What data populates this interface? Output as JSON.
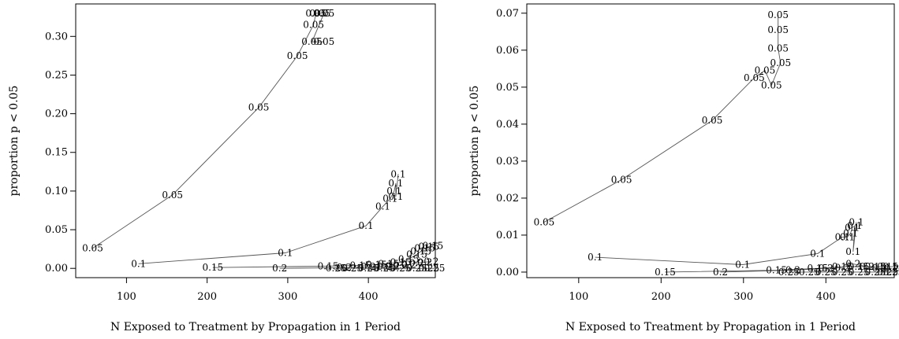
{
  "chart_data": [
    {
      "type": "line",
      "xlabel": "N Exposed to Treatment by Propagation in 1 Period",
      "ylabel": "proportion p < 0.05",
      "xlim": [
        37,
        483
      ],
      "ylim": [
        -0.012,
        0.342
      ],
      "x_ticks": [
        100,
        200,
        300,
        400
      ],
      "x_tick_labels": [
        "100",
        "200",
        "300",
        "400"
      ],
      "y_ticks": [
        0.0,
        0.05,
        0.1,
        0.15,
        0.2,
        0.25,
        0.3
      ],
      "y_tick_labels": [
        "0.00",
        "0.05",
        "0.10",
        "0.15",
        "0.20",
        "0.25",
        "0.30"
      ],
      "grid": false,
      "legend": "none",
      "series": [
        {
          "label": "0.05",
          "x": [
            58,
            157,
            264,
            312,
            332,
            335,
            340,
            345,
            330,
            345
          ],
          "y": [
            0.026,
            0.095,
            0.208,
            0.275,
            0.315,
            0.33,
            0.33,
            0.33,
            0.293,
            0.293
          ]
        },
        {
          "label": "0.1",
          "x": [
            115,
            297,
            397,
            418,
            427,
            432,
            434,
            434,
            437
          ],
          "y": [
            0.006,
            0.02,
            0.055,
            0.08,
            0.09,
            0.1,
            0.11,
            0.093,
            0.122
          ]
        },
        {
          "label": "0.15",
          "x": [
            207,
            350,
            390,
            410,
            425,
            440,
            450,
            460,
            465,
            470,
            475,
            480
          ],
          "y": [
            0.001,
            0.003,
            0.004,
            0.005,
            0.006,
            0.008,
            0.012,
            0.018,
            0.022,
            0.026,
            0.028,
            0.029
          ]
        },
        {
          "label": "0.2",
          "x": [
            290,
            370,
            400,
            420,
            430,
            440,
            450,
            460,
            470,
            478
          ],
          "y": [
            0.0,
            0.001,
            0.002,
            0.002,
            0.003,
            0.004,
            0.005,
            0.007,
            0.008,
            0.009
          ]
        },
        {
          "label": "0.25",
          "x": [
            360,
            380,
            400,
            420,
            440,
            460,
            475,
            482
          ],
          "y": [
            0.0,
            0.0,
            0.0,
            0.0,
            0.0,
            0.0,
            0.0,
            0.0
          ]
        }
      ]
    },
    {
      "type": "line",
      "xlabel": "N Exposed to Treatment by Propagation in 1 Period",
      "ylabel": "proportion p < 0.05",
      "xlim": [
        37,
        483
      ],
      "ylim": [
        -0.0015,
        0.0725
      ],
      "x_ticks": [
        100,
        200,
        300,
        400
      ],
      "x_tick_labels": [
        "100",
        "200",
        "300",
        "400"
      ],
      "y_ticks": [
        0.0,
        0.01,
        0.02,
        0.03,
        0.04,
        0.05,
        0.06,
        0.07
      ],
      "y_tick_labels": [
        "0.00",
        "0.01",
        "0.02",
        "0.03",
        "0.04",
        "0.05",
        "0.06",
        "0.07"
      ],
      "grid": false,
      "legend": "none",
      "series": [
        {
          "label": "0.05",
          "x": [
            58,
            152,
            262,
            313,
            326,
            334,
            345,
            342,
            342,
            342
          ],
          "y": [
            0.0135,
            0.025,
            0.041,
            0.0525,
            0.0545,
            0.0505,
            0.0565,
            0.0605,
            0.0655,
            0.0695
          ]
        },
        {
          "label": "0.1",
          "x": [
            120,
            299,
            390,
            420,
            426,
            430,
            432,
            435,
            433,
            437
          ],
          "y": [
            0.004,
            0.002,
            0.005,
            0.0095,
            0.0095,
            0.0105,
            0.012,
            0.0125,
            0.0055,
            0.0135
          ]
        },
        {
          "label": "0.15",
          "x": [
            205,
            340,
            390,
            420,
            440,
            460,
            475,
            482
          ],
          "y": [
            0.0,
            0.0005,
            0.001,
            0.0015,
            0.0015,
            0.0015,
            0.0015,
            0.0015
          ]
        },
        {
          "label": "0.2",
          "x": [
            272,
            360,
            400,
            420,
            433,
            450,
            465,
            480
          ],
          "y": [
            0.0,
            0.0005,
            0.001,
            0.0012,
            0.0022,
            0.0015,
            0.001,
            0.001
          ]
        },
        {
          "label": "0.25",
          "x": [
            355,
            380,
            400,
            420,
            440,
            460,
            475,
            482
          ],
          "y": [
            0.0,
            0.0,
            0.0,
            0.0,
            0.0,
            0.0,
            0.0,
            0.0
          ]
        }
      ]
    }
  ]
}
